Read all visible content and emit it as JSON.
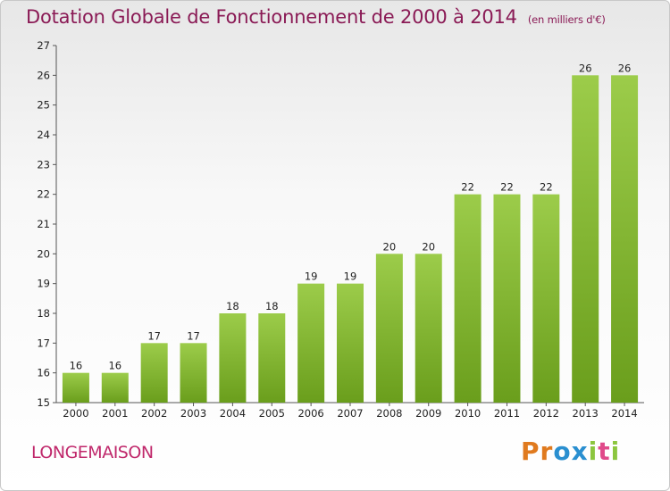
{
  "title": "Dotation Globale de Fonctionnement de 2000 à 2014",
  "subtitle": "(en milliers d'€)",
  "commune": "LONGEMAISON",
  "logo": {
    "text": "Proxiti",
    "letters": [
      "P",
      "r",
      "o",
      "x",
      "i",
      "t",
      "i"
    ],
    "colors": [
      "#e07a1e",
      "#e07a1e",
      "#2a8fd0",
      "#2a8fd0",
      "#8cc63f",
      "#e04a8a",
      "#8cc63f"
    ]
  },
  "colors": {
    "bar_light": "#9ccc4a",
    "bar_dark": "#6a9e1c",
    "title": "#8a1a55",
    "commune": "#c0286b"
  },
  "chart_data": {
    "type": "bar",
    "title": "Dotation Globale de Fonctionnement de 2000 à 2014",
    "subtitle": "(en milliers d'€)",
    "categories": [
      "2000",
      "2001",
      "2002",
      "2003",
      "2004",
      "2005",
      "2006",
      "2007",
      "2008",
      "2009",
      "2010",
      "2011",
      "2012",
      "2013",
      "2014"
    ],
    "values": [
      16,
      16,
      17,
      17,
      18,
      18,
      19,
      19,
      20,
      20,
      22,
      22,
      22,
      26,
      26
    ],
    "ylim": [
      15,
      27
    ],
    "yticks": [
      15,
      16,
      17,
      18,
      19,
      20,
      21,
      22,
      23,
      24,
      25,
      26,
      27
    ],
    "grid": false,
    "data_labels": true
  }
}
